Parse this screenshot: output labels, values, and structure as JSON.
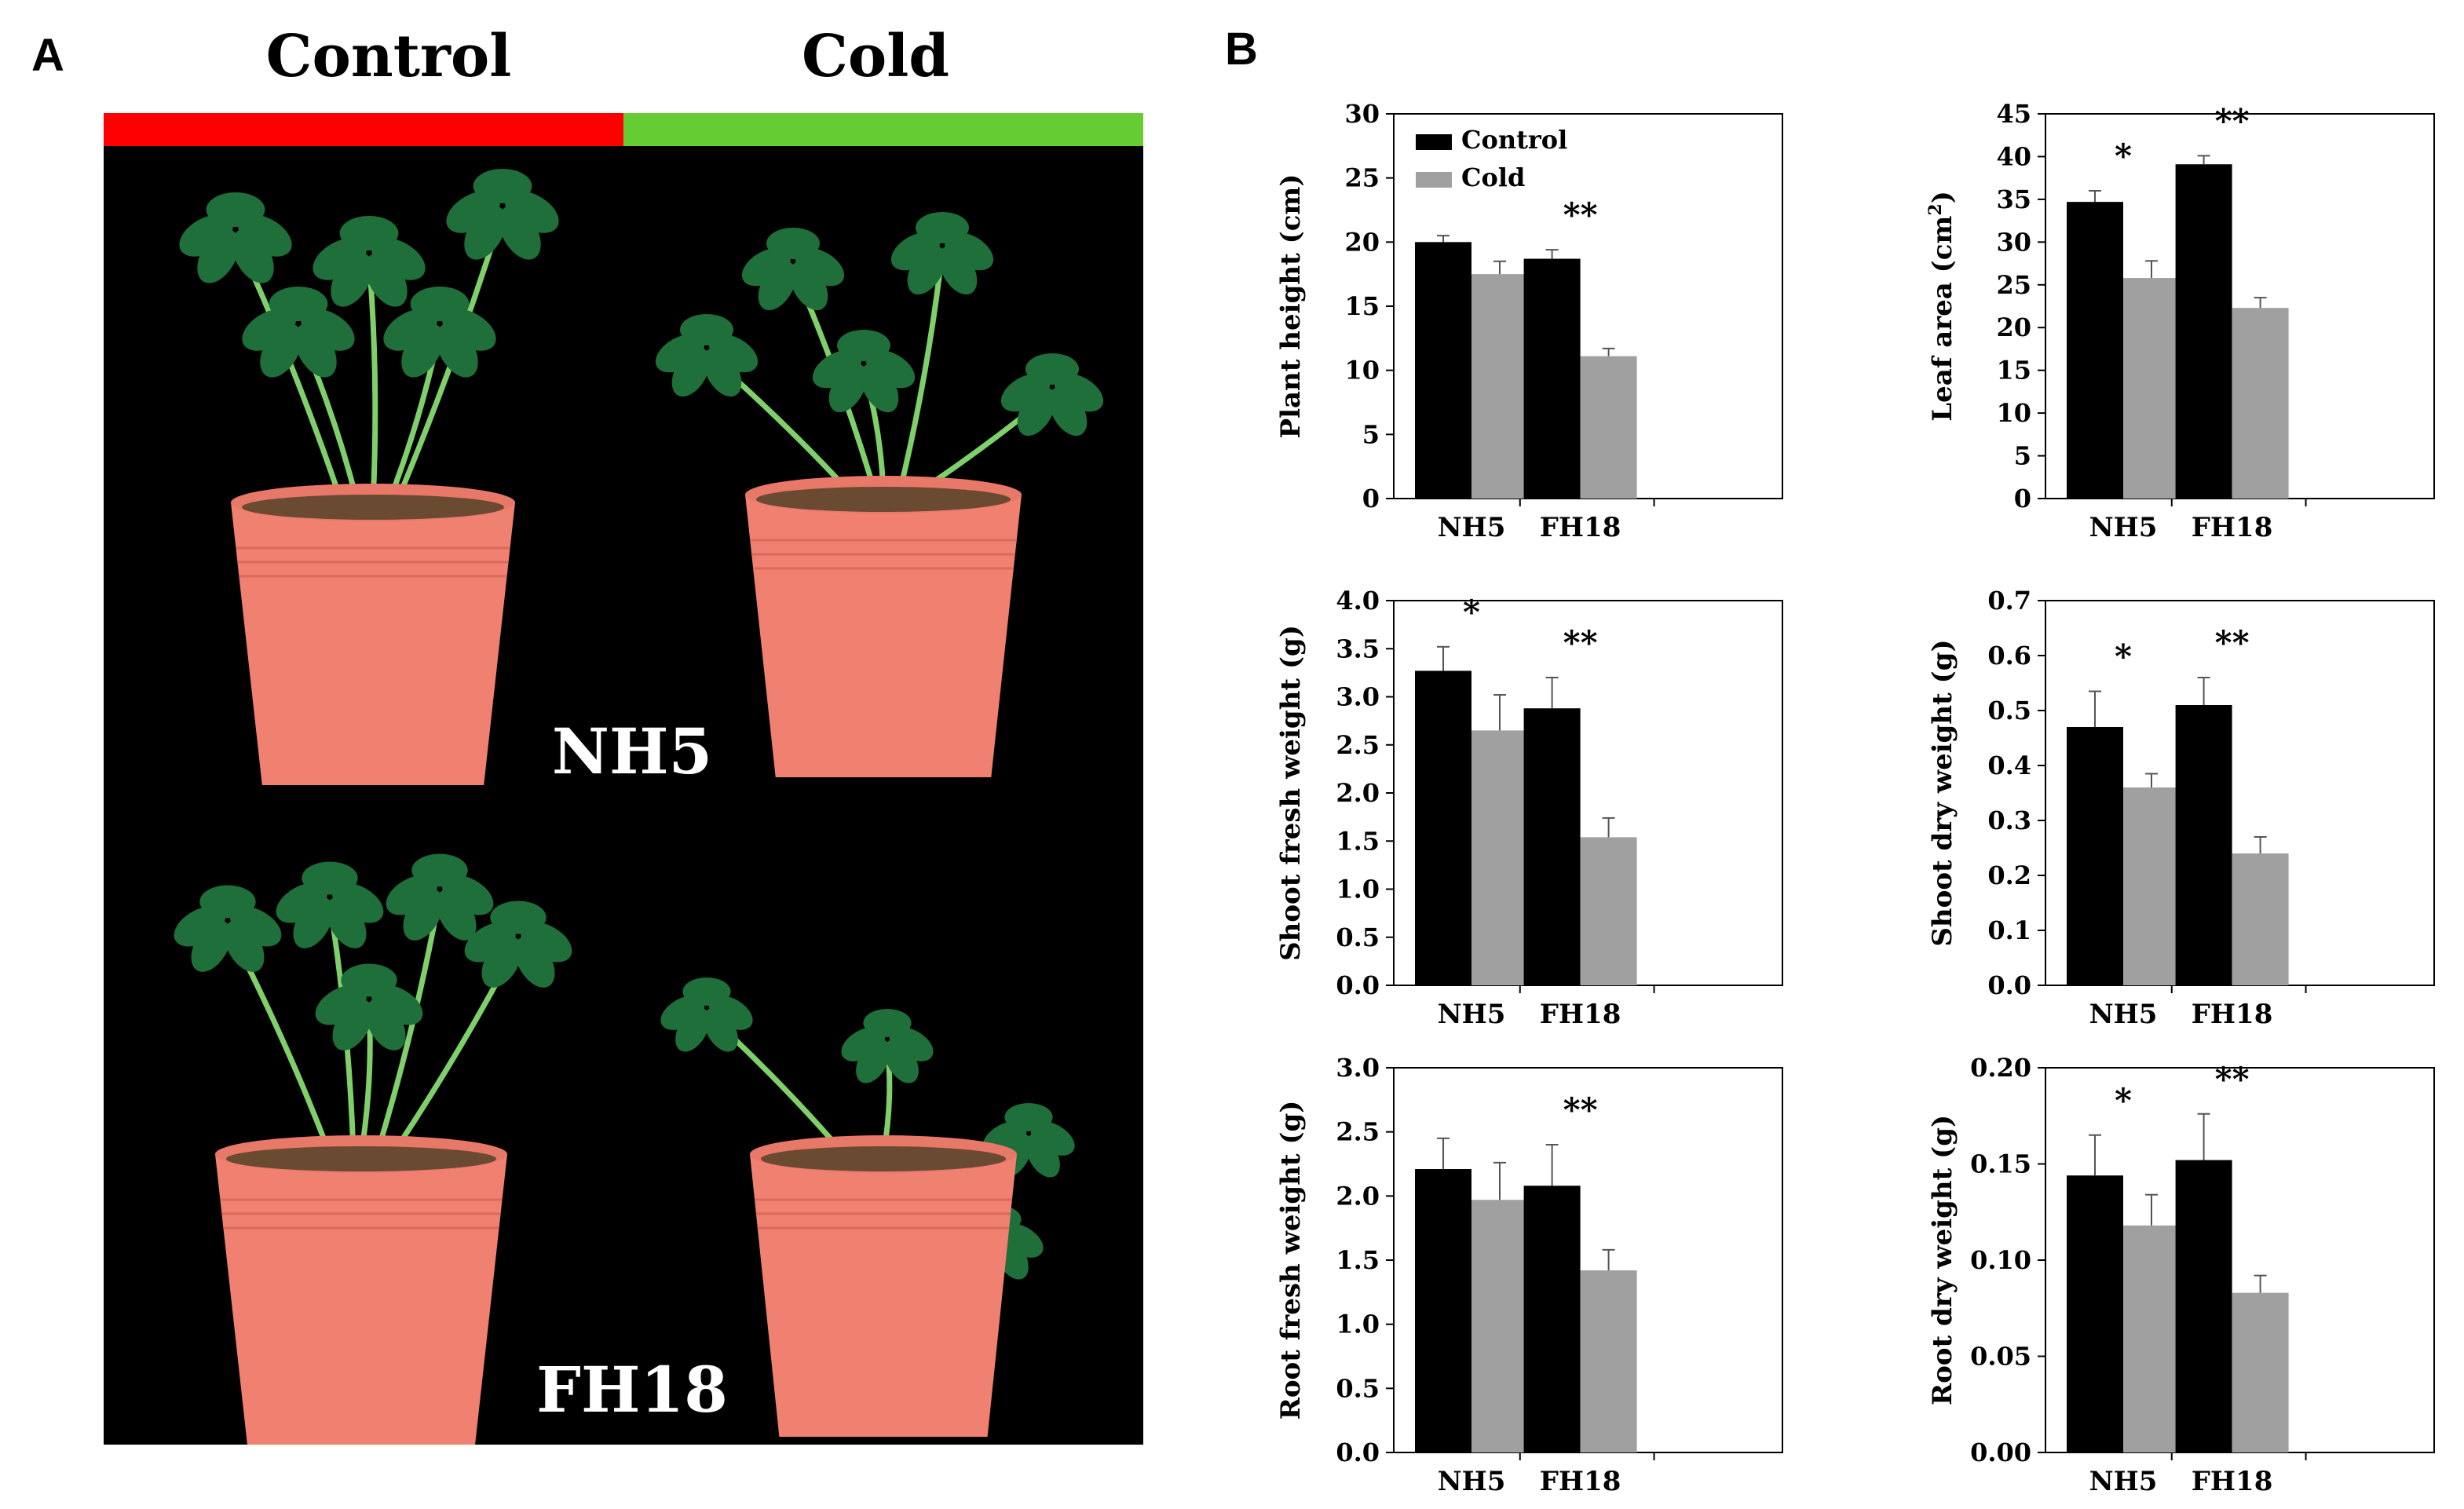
{
  "panel_a": {
    "label": "A",
    "col_labels": [
      "Control",
      "Cold"
    ],
    "row_labels": [
      "NH5",
      "FH18"
    ],
    "bar_colors": {
      "control": "#ff0000",
      "cold": "#66cc33"
    },
    "pot_color": "#f08070",
    "leaf_color": "#1f6f3a"
  },
  "panel_b": {
    "label": "B",
    "legend": [
      {
        "name": "Control",
        "color": "#000000"
      },
      {
        "name": "Cold",
        "color": "#a0a0a0"
      }
    ]
  },
  "chart_data": [
    {
      "type": "bar",
      "ylabel": "Plant height (cm)",
      "categories": [
        "NH5",
        "FH18"
      ],
      "series": [
        {
          "name": "Control",
          "values": [
            20.0,
            18.7
          ],
          "errors": [
            0.5,
            0.7
          ]
        },
        {
          "name": "Cold",
          "values": [
            17.5,
            11.1
          ],
          "errors": [
            1.0,
            0.6
          ]
        }
      ],
      "ylim": [
        0,
        30
      ],
      "yticks": [
        "0",
        "5",
        "10",
        "15",
        "20",
        "25",
        "30"
      ],
      "annotations": [
        "",
        "**"
      ],
      "legend": "top-left"
    },
    {
      "type": "bar",
      "ylabel": "Leaf area (cm",
      "ylabel_sup": "2",
      "ylabel_end": ")",
      "categories": [
        "NH5",
        "FH18"
      ],
      "series": [
        {
          "name": "Control",
          "values": [
            34.7,
            39.1
          ],
          "errors": [
            1.3,
            1.0
          ]
        },
        {
          "name": "Cold",
          "values": [
            25.8,
            22.3
          ],
          "errors": [
            2.0,
            1.2
          ]
        }
      ],
      "ylim": [
        0,
        45
      ],
      "yticks": [
        "0",
        "5",
        "10",
        "15",
        "20",
        "25",
        "30",
        "35",
        "40",
        "45"
      ],
      "annotations": [
        "*",
        "**"
      ]
    },
    {
      "type": "bar",
      "ylabel": "Shoot fresh weight (g)",
      "categories": [
        "NH5",
        "FH18"
      ],
      "series": [
        {
          "name": "Control",
          "values": [
            3.27,
            2.88
          ],
          "errors": [
            0.25,
            0.32
          ]
        },
        {
          "name": "Cold",
          "values": [
            2.65,
            1.54
          ],
          "errors": [
            0.37,
            0.2
          ]
        }
      ],
      "ylim": [
        0,
        4
      ],
      "yticks": [
        "0.0",
        "0.5",
        "1.0",
        "1.5",
        "2.0",
        "2.5",
        "3.0",
        "3.5",
        "4.0"
      ],
      "annotations": [
        "*",
        "**"
      ]
    },
    {
      "type": "bar",
      "ylabel": "Shoot dry weight (g)",
      "categories": [
        "NH5",
        "FH18"
      ],
      "series": [
        {
          "name": "Control",
          "values": [
            0.47,
            0.51
          ],
          "errors": [
            0.065,
            0.05
          ]
        },
        {
          "name": "Cold",
          "values": [
            0.36,
            0.24
          ],
          "errors": [
            0.025,
            0.03
          ]
        }
      ],
      "ylim": [
        0,
        0.7
      ],
      "yticks": [
        "0.0",
        "0.1",
        "0.2",
        "0.3",
        "0.4",
        "0.5",
        "0.6",
        "0.7"
      ],
      "annotations": [
        "*",
        "**"
      ]
    },
    {
      "type": "bar",
      "ylabel": "Root fresh weight (g)",
      "categories": [
        "NH5",
        "FH18"
      ],
      "series": [
        {
          "name": "Control",
          "values": [
            2.21,
            2.08
          ],
          "errors": [
            0.24,
            0.32
          ]
        },
        {
          "name": "Cold",
          "values": [
            1.97,
            1.42
          ],
          "errors": [
            0.29,
            0.16
          ]
        }
      ],
      "ylim": [
        0,
        3
      ],
      "yticks": [
        "0.0",
        "0.5",
        "1.0",
        "1.5",
        "2.0",
        "2.5",
        "3.0"
      ],
      "annotations": [
        "",
        "**"
      ]
    },
    {
      "type": "bar",
      "ylabel": "Root dry weight (g)",
      "categories": [
        "NH5",
        "FH18"
      ],
      "series": [
        {
          "name": "Control",
          "values": [
            0.144,
            0.152
          ],
          "errors": [
            0.021,
            0.024
          ]
        },
        {
          "name": "Cold",
          "values": [
            0.118,
            0.083
          ],
          "errors": [
            0.016,
            0.009
          ]
        }
      ],
      "ylim": [
        0,
        0.2
      ],
      "yticks": [
        "0.00",
        "0.05",
        "0.10",
        "0.15",
        "0.20"
      ],
      "annotations": [
        "*",
        "**"
      ]
    }
  ]
}
